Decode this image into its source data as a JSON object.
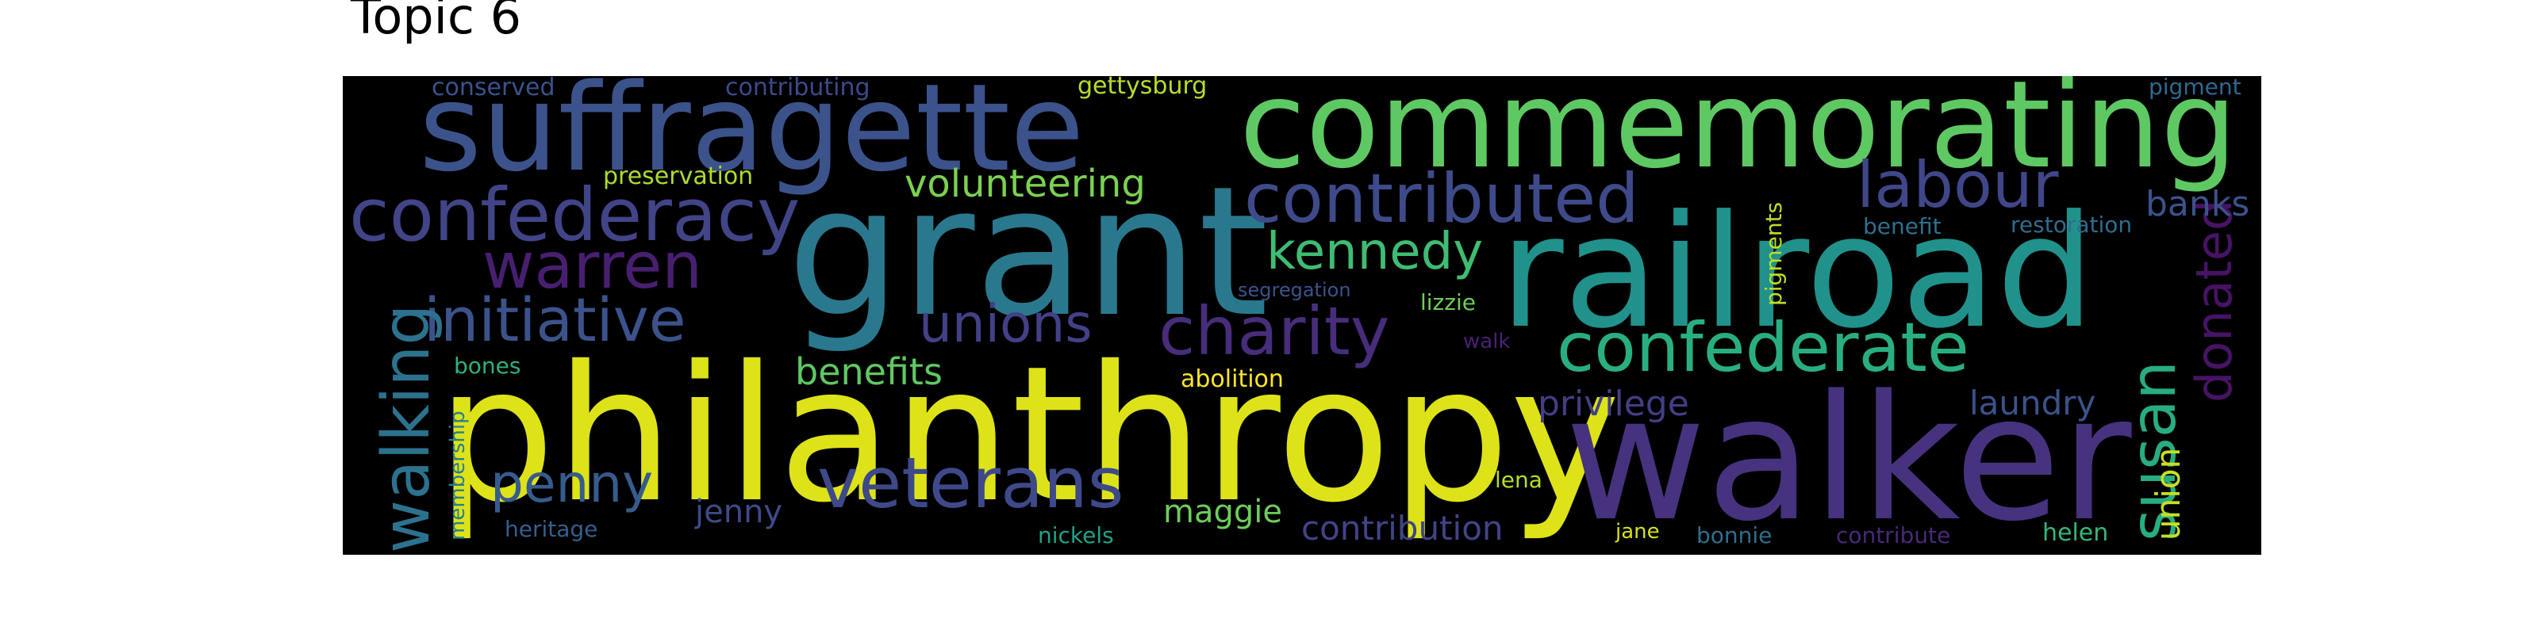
{
  "title": "Topic 6",
  "colors": {
    "background": "#000000",
    "title_text": "#000000"
  },
  "words": [
    {
      "text": "philanthropy",
      "color": "#dde318"
    },
    {
      "text": "walker",
      "color": "#46327e"
    },
    {
      "text": "grant",
      "color": "#2a788e"
    },
    {
      "text": "railroad",
      "color": "#21918c"
    },
    {
      "text": "commemorating",
      "color": "#5ec962"
    },
    {
      "text": "suffragette",
      "color": "#3b528b"
    },
    {
      "text": "confederacy",
      "color": "#414487"
    },
    {
      "text": "contributed",
      "color": "#3e4a89"
    },
    {
      "text": "confederate",
      "color": "#29af7f"
    },
    {
      "text": "charity",
      "color": "#472d7b"
    },
    {
      "text": "veterans",
      "color": "#3e4989"
    },
    {
      "text": "initiative",
      "color": "#3b528b"
    },
    {
      "text": "warren",
      "color": "#481f70"
    },
    {
      "text": "labour",
      "color": "#404688"
    },
    {
      "text": "kennedy",
      "color": "#3fbc73"
    },
    {
      "text": "unions",
      "color": "#424086"
    },
    {
      "text": "walking",
      "color": "#2c728e"
    },
    {
      "text": "susan",
      "color": "#27ad81"
    },
    {
      "text": "donated",
      "color": "#471365"
    },
    {
      "text": "penny",
      "color": "#365c8d"
    },
    {
      "text": "volunteering",
      "color": "#7ad151"
    },
    {
      "text": "contribution",
      "color": "#414487"
    },
    {
      "text": "union",
      "color": "#c8e020"
    },
    {
      "text": "banks",
      "color": "#3b528b"
    },
    {
      "text": "benefits",
      "color": "#5ec962"
    },
    {
      "text": "maggie",
      "color": "#6ccd5a"
    },
    {
      "text": "privilege",
      "color": "#433e85"
    },
    {
      "text": "jenny",
      "color": "#3e4a89"
    },
    {
      "text": "laundry",
      "color": "#3b528b"
    },
    {
      "text": "preservation",
      "color": "#addc30"
    },
    {
      "text": "pigments",
      "color": "#bddf26"
    },
    {
      "text": "abolition",
      "color": "#fde725"
    },
    {
      "text": "lizzie",
      "color": "#6ece58"
    },
    {
      "text": "lena",
      "color": "#b5de2b"
    },
    {
      "text": "restoration",
      "color": "#2f6c8e"
    },
    {
      "text": "heritage",
      "color": "#355f8d"
    },
    {
      "text": "contributing",
      "color": "#3e4989"
    },
    {
      "text": "gettysburg",
      "color": "#b5de2b"
    },
    {
      "text": "conserved",
      "color": "#3b528b"
    },
    {
      "text": "pigment",
      "color": "#31688e"
    },
    {
      "text": "benefit",
      "color": "#2e6f8e"
    },
    {
      "text": "segregation",
      "color": "#3b528b"
    },
    {
      "text": "walk",
      "color": "#482173"
    },
    {
      "text": "bones",
      "color": "#2db27d"
    },
    {
      "text": "membership",
      "color": "#277f8e"
    },
    {
      "text": "nickels",
      "color": "#20a386"
    },
    {
      "text": "jane",
      "color": "#d5e21a"
    },
    {
      "text": "bonnie",
      "color": "#2e6e8e"
    },
    {
      "text": "contribute",
      "color": "#482878"
    },
    {
      "text": "helen",
      "color": "#35b779"
    }
  ]
}
